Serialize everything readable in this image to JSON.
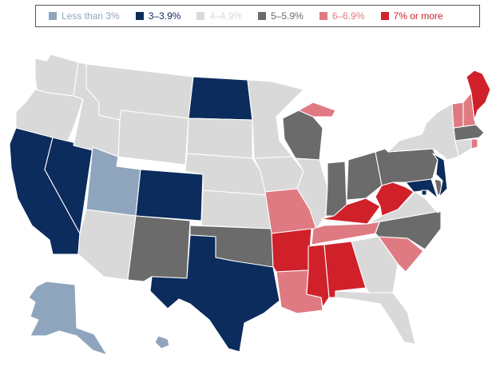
{
  "legend": {
    "items": [
      {
        "key": "lt3",
        "label": "Less than 3%",
        "color": "#8fa5bd"
      },
      {
        "key": "3to4",
        "label": "3–3.9%",
        "color": "#0b2c5c"
      },
      {
        "key": "4to5",
        "label": "4–4.9%",
        "color": "#d9d9d9"
      },
      {
        "key": "5to6",
        "label": "5–5.9%",
        "color": "#6b6b6b"
      },
      {
        "key": "6to7",
        "label": "6–6.9%",
        "color": "#e07a82"
      },
      {
        "key": "gte7",
        "label": "7% or more",
        "color": "#d0212b"
      }
    ]
  },
  "states": {
    "WA": "4to5",
    "OR": "4to5",
    "CA": "3to4",
    "NV": "3to4",
    "ID": "4to5",
    "MT": "4to5",
    "WY": "4to5",
    "UT": "lt3",
    "AZ": "4to5",
    "CO": "3to4",
    "NM": "5to6",
    "ND": "3to4",
    "SD": "4to5",
    "NE": "4to5",
    "KS": "4to5",
    "OK": "5to6",
    "TX": "3to4",
    "MN": "4to5",
    "IA": "4to5",
    "MO": "6to7",
    "AR": "gte7",
    "LA": "6to7",
    "WI": "5to6",
    "IL": "4to5",
    "MI": "6to7",
    "IN": "5to6",
    "OH": "5to6",
    "KY": "gte7",
    "TN": "6to7",
    "MS": "gte7",
    "AL": "gte7",
    "GA": "4to5",
    "FL": "4to5",
    "SC": "6to7",
    "NC": "5to6",
    "VA": "4to5",
    "WV": "gte7",
    "MD": "3to4",
    "DE": "5to6",
    "NJ": "3to4",
    "PA": "5to6",
    "NY": "4to5",
    "VT": "6to7",
    "NH": "6to7",
    "ME": "gte7",
    "MA": "5to6",
    "CT": "4to5",
    "RI": "6to7",
    "DC": "3to4",
    "AK": "lt3",
    "HI": "lt3"
  }
}
